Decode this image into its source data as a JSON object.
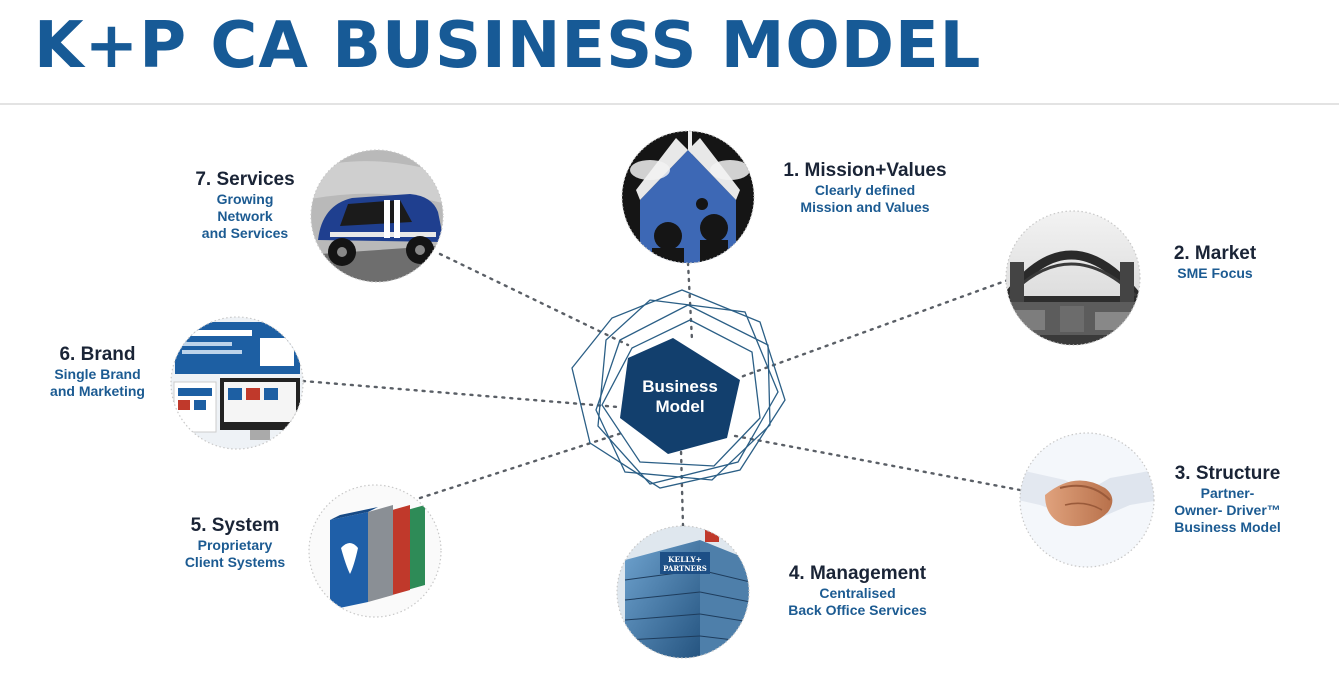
{
  "title": "K+P CA BUSINESS MODEL",
  "center": {
    "label": "Business\nModel",
    "fill": "#123f6d",
    "outline": "#2b5f86"
  },
  "colors": {
    "title": "#175a96",
    "heading": "#1a2436",
    "subtext": "#1c5b92",
    "dots": "#5a5f66"
  },
  "nodes": [
    {
      "id": "mission",
      "heading": "1. Mission+Values",
      "sub": "Clearly defined\nMission and Values",
      "image": "jigsaw-silhouettes"
    },
    {
      "id": "market",
      "heading": "2. Market",
      "sub": "SME Focus",
      "image": "harbour-bridge"
    },
    {
      "id": "structure",
      "heading": "3. Structure",
      "sub": "Partner-\nOwner- Driver™\nBusiness Model",
      "image": "handshake"
    },
    {
      "id": "management",
      "heading": "4. Management",
      "sub": "Centralised\nBack Office Services",
      "image": "office-building",
      "sign": [
        "KELLY+",
        "PARTNERS"
      ]
    },
    {
      "id": "system",
      "heading": "5. System",
      "sub": "Proprietary\nClient Systems",
      "image": "binders"
    },
    {
      "id": "brand",
      "heading": "6. Brand",
      "sub": "Single Brand\nand Marketing",
      "image": "website-screens"
    },
    {
      "id": "services",
      "heading": "7. Services",
      "sub": "Growing\nNetwork\nand Services",
      "image": "mini-car"
    }
  ]
}
